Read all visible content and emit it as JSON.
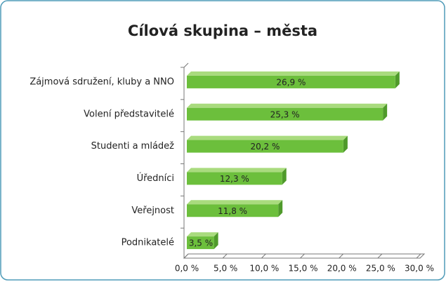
{
  "chart_data": {
    "type": "bar3d_horizontal",
    "title": "Cílová skupina – města",
    "categories": [
      "Zájmová sdružení, kluby a NNO",
      "Volení představitelé",
      "Studenti a mládež",
      "Úředníci",
      "Veřejnost",
      "Podnikatelé"
    ],
    "values": [
      26.9,
      25.3,
      20.2,
      12.3,
      11.8,
      3.5
    ],
    "value_labels": [
      "26,9 %",
      "25,3 %",
      "20,2 %",
      "12,3 %",
      "11,8 %",
      "3,5 %"
    ],
    "color": "#6cbf3c",
    "xlim": [
      0,
      30
    ],
    "xticks": [
      {
        "value": 0,
        "label": "0,0 %"
      },
      {
        "value": 5,
        "label": "5,0 %"
      },
      {
        "value": 10,
        "label": "10,0 %"
      },
      {
        "value": 15,
        "label": "15,0 %"
      },
      {
        "value": 20,
        "label": "20,0 %"
      },
      {
        "value": 25,
        "label": "25,0 %"
      },
      {
        "value": 30,
        "label": "30,0 %"
      }
    ]
  }
}
